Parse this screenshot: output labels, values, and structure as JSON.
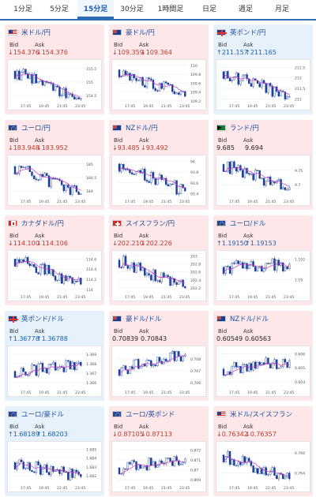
{
  "tabs": [
    {
      "label": "1分足",
      "active": false
    },
    {
      "label": "5分足",
      "active": false
    },
    {
      "label": "15分足",
      "active": true
    },
    {
      "label": "30分足",
      "active": false
    },
    {
      "label": "1時間足",
      "active": false
    },
    {
      "label": "日足",
      "active": false
    },
    {
      "label": "週足",
      "active": false
    },
    {
      "label": "月足",
      "active": false
    }
  ],
  "colors": {
    "down_text": "#c0392b",
    "up_text": "#1a5fb4",
    "candle": "#1a3f99",
    "ma": "#cc33cc",
    "up_card_bg": "#e6f1fc",
    "down_card_bg": "#fde7e9"
  },
  "cards": [
    {
      "name": "米ドル/円",
      "flag": "us",
      "trend": "down",
      "bid_label": "Bid",
      "ask_label": "Ask",
      "bid": "↓154.376",
      "ask": "↓154.376",
      "chart": {
        "y_ticks": [
          "155.5",
          "155",
          "154.5"
        ],
        "x_ticks": [
          "17:45",
          "19:45",
          "21:45",
          "23:45"
        ],
        "start": 155.4,
        "end": 154.4,
        "low": 154.3,
        "high": 155.7
      }
    },
    {
      "name": "豪ドル/円",
      "flag": "au",
      "trend": "down",
      "bid_label": "Bid",
      "ask_label": "Ask",
      "bid": "↓109.359",
      "ask": "↓109.364",
      "chart": {
        "y_ticks": [
          "110",
          "109.8",
          "109.6",
          "109.4",
          "109.2"
        ],
        "x_ticks": [
          "17:45",
          "19:45",
          "21:45",
          "23:45"
        ],
        "start": 109.9,
        "end": 109.3,
        "low": 109.2,
        "high": 110.05
      }
    },
    {
      "name": "英ポンド/円",
      "flag": "gb",
      "trend": "up",
      "bid_label": "Bid",
      "ask_label": "Ask",
      "bid": "↑211.157",
      "ask": "↑211.165",
      "chart": {
        "y_ticks": [
          "212.5",
          "212",
          "211.5",
          "211"
        ],
        "x_ticks": [
          "17:45",
          "19:45",
          "21:45",
          "23:45"
        ],
        "start": 212.3,
        "end": 211.1,
        "low": 210.9,
        "high": 212.7
      }
    },
    {
      "name": "ユーロ/円",
      "flag": "eu",
      "trend": "down",
      "bid_label": "Bid",
      "ask_label": "Ask",
      "bid": "↓183.948",
      "ask": "↓183.952",
      "chart": {
        "y_ticks": [
          "185",
          "184.5",
          "184"
        ],
        "x_ticks": [
          "17:45",
          "19:45",
          "21:45",
          "23:45"
        ],
        "start": 184.9,
        "end": 183.9,
        "low": 183.8,
        "high": 185.2
      }
    },
    {
      "name": "NZドル/円",
      "flag": "nz",
      "trend": "down",
      "bid_label": "Bid",
      "ask_label": "Ask",
      "bid": "↓93.485",
      "ask": "↓93.492",
      "chart": {
        "y_ticks": [
          "94",
          "93.8",
          "93.6",
          "93.4"
        ],
        "x_ticks": [
          "17:45",
          "19:45",
          "21:45",
          "23:45"
        ],
        "start": 93.95,
        "end": 93.45,
        "low": 93.35,
        "high": 94.05
      }
    },
    {
      "name": "ランド/円",
      "flag": "za",
      "trend": "down",
      "bid_label": "Bid",
      "ask_label": "Ask",
      "bid": "9.685",
      "ask": "9.694",
      "chart": {
        "y_ticks": [
          "9.75",
          "9.7"
        ],
        "x_ticks": [
          "17:45",
          "19:45",
          "21:45",
          "23:45"
        ],
        "start": 9.77,
        "end": 9.69,
        "low": 9.66,
        "high": 9.79
      }
    },
    {
      "name": "カナダドル/円",
      "flag": "ca",
      "trend": "down",
      "bid_label": "Bid",
      "ask_label": "Ask",
      "bid": "↓114.100",
      "ask": "↓114.106",
      "chart": {
        "y_ticks": [
          "114.6",
          "114.4",
          "114.2",
          "114"
        ],
        "x_ticks": [
          "17:45",
          "19:45",
          "21:45",
          "23:45"
        ],
        "start": 114.6,
        "end": 114.1,
        "low": 113.95,
        "high": 114.7
      }
    },
    {
      "name": "スイスフラン/円",
      "flag": "ch",
      "trend": "down",
      "bid_label": "Bid",
      "ask_label": "Ask",
      "bid": "↓202.210",
      "ask": "↓202.226",
      "chart": {
        "y_ticks": [
          "203",
          "202.8",
          "202.6",
          "202.4",
          "202.2"
        ],
        "x_ticks": [
          "17:45",
          "19:45",
          "21:45",
          "23:45"
        ],
        "start": 202.9,
        "end": 202.2,
        "low": 202.1,
        "high": 203.05
      }
    },
    {
      "name": "ユーロ/ドル",
      "flag": "eu",
      "trend": "down",
      "bid_label": "Bid",
      "ask_label": "Ask",
      "bid": "↑1.19150",
      "ask": "↑1.19153",
      "chart": {
        "y_ticks": [
          "1.192",
          "1.19"
        ],
        "x_ticks": [
          "17:45",
          "19:45",
          "21:45",
          "23:45"
        ],
        "start": 1.1912,
        "end": 1.1915,
        "low": 1.1888,
        "high": 1.1925
      }
    },
    {
      "name": "英ポンド/ドル",
      "flag": "gb",
      "trend": "up",
      "bid_label": "Bid",
      "ask_label": "Ask",
      "bid": "↑1.36778",
      "ask": "↑1.36788",
      "chart": {
        "y_ticks": [
          "1.369",
          "1.368",
          "1.367",
          "1.366"
        ],
        "x_ticks": [
          "17:45",
          "19:45",
          "21:45",
          "23:45"
        ],
        "start": 1.3672,
        "end": 1.3678,
        "low": 1.3655,
        "high": 1.3695
      }
    },
    {
      "name": "豪ドル/ドル",
      "flag": "au",
      "trend": "down",
      "bid_label": "Bid",
      "ask_label": "Ask",
      "bid": "0.70839",
      "ask": "0.70843",
      "chart": {
        "y_ticks": [
          "0.708",
          "0.707",
          "0.706"
        ],
        "x_ticks": [
          "17:45",
          "19:45",
          "21:45",
          "23:45"
        ],
        "start": 0.7071,
        "end": 0.7084,
        "low": 0.7056,
        "high": 0.7088
      }
    },
    {
      "name": "NZドル/ドル",
      "flag": "nz",
      "trend": "down",
      "bid_label": "Bid",
      "ask_label": "Ask",
      "bid": "0.60549",
      "ask": "0.60563",
      "chart": {
        "y_ticks": [
          "0.606",
          "0.605",
          "0.604"
        ],
        "x_ticks": [
          "17:45",
          "19:45",
          "21:45",
          "23:45"
        ],
        "start": 0.6049,
        "end": 0.6055,
        "low": 0.6036,
        "high": 0.6063
      }
    },
    {
      "name": "ユーロ/豪ドル",
      "flag": "eu",
      "trend": "up",
      "bid_label": "Bid",
      "ask_label": "Ask",
      "bid": "↑1.68189",
      "ask": "↑1.68203",
      "chart": {
        "y_ticks": [
          "1.685",
          "1.684",
          "1.683",
          "1.682"
        ],
        "x_ticks": [
          "17:45",
          "19:45",
          "21:45",
          "23:45"
        ],
        "start": 1.6835,
        "end": 1.6819,
        "low": 1.6812,
        "high": 1.6855
      }
    },
    {
      "name": "ユーロ/英ポンド",
      "flag": "eu",
      "trend": "down",
      "bid_label": "Bid",
      "ask_label": "Ask",
      "bid": "↓0.87105",
      "ask": "↓0.87113",
      "chart": {
        "y_ticks": [
          "0.872",
          "0.871",
          "0.87",
          "0.869"
        ],
        "x_ticks": [
          "17:45",
          "19:45",
          "21:45",
          "23:45"
        ],
        "start": 0.8702,
        "end": 0.8711,
        "low": 0.8687,
        "high": 0.8725
      }
    },
    {
      "name": "米ドル/スイスフラン",
      "flag": "us",
      "trend": "down",
      "bid_label": "Bid",
      "ask_label": "Ask",
      "bid": "↓0.76342",
      "ask": "↓0.76357",
      "chart": {
        "y_ticks": [
          "0.766",
          "0.764"
        ],
        "x_ticks": [
          "17:45",
          "19:45",
          "21:45",
          "23:45"
        ],
        "start": 0.7658,
        "end": 0.7634,
        "low": 0.763,
        "high": 0.7668
      }
    }
  ]
}
